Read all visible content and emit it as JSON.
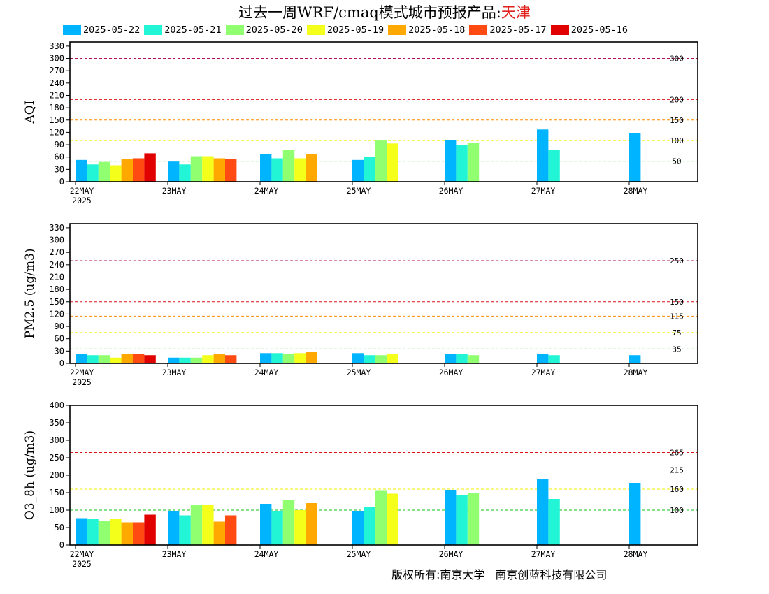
{
  "title": {
    "main": "过去一周WRF/cmaq模式城市预报产品:",
    "city": "天津"
  },
  "legend": [
    {
      "label": "2025-05-22",
      "color": "#00b4ff"
    },
    {
      "label": "2025-05-21",
      "color": "#21f5d5"
    },
    {
      "label": "2025-05-20",
      "color": "#90ff70"
    },
    {
      "label": "2025-05-19",
      "color": "#f4ff1a"
    },
    {
      "label": "2025-05-18",
      "color": "#ffa800"
    },
    {
      "label": "2025-05-17",
      "color": "#ff4a12"
    },
    {
      "label": "2025-05-16",
      "color": "#e00000"
    }
  ],
  "footer": {
    "left": "版权所有:南京大学",
    "right": "南京创蓝科技有限公司"
  },
  "chart_data": [
    {
      "type": "bar",
      "ylabel": "AQI",
      "ylim": [
        0,
        340
      ],
      "yticks": [
        0,
        30,
        60,
        90,
        120,
        150,
        180,
        210,
        240,
        270,
        300,
        330
      ],
      "categories": [
        "22MAY",
        "23MAY",
        "24MAY",
        "25MAY",
        "26MAY",
        "27MAY",
        "28MAY"
      ],
      "year_label": "2025",
      "thresholds": [
        {
          "value": 300,
          "label": "300",
          "color": "#b0105a"
        },
        {
          "value": 200,
          "label": "200",
          "color": "#e0101a"
        },
        {
          "value": 150,
          "label": "150",
          "color": "#ff8c00"
        },
        {
          "value": 100,
          "label": "100",
          "color": "#f0f000"
        },
        {
          "value": 50,
          "label": "50",
          "color": "#10c010"
        }
      ],
      "series": [
        {
          "name": "2025-05-22",
          "values": [
            53,
            49,
            68,
            53,
            101,
            127,
            119
          ]
        },
        {
          "name": "2025-05-21",
          "values": [
            42,
            42,
            57,
            60,
            89,
            78,
            null
          ]
        },
        {
          "name": "2025-05-20",
          "values": [
            48,
            62,
            78,
            100,
            95,
            null,
            null
          ]
        },
        {
          "name": "2025-05-19",
          "values": [
            40,
            62,
            57,
            93,
            null,
            null,
            null
          ]
        },
        {
          "name": "2025-05-18",
          "values": [
            55,
            57,
            68,
            null,
            null,
            null,
            null
          ]
        },
        {
          "name": "2025-05-17",
          "values": [
            57,
            55,
            null,
            null,
            null,
            null,
            null
          ]
        },
        {
          "name": "2025-05-16",
          "values": [
            69,
            null,
            null,
            null,
            null,
            null,
            null
          ]
        }
      ]
    },
    {
      "type": "bar",
      "ylabel": "PM2.5 (ug/m3)",
      "ylim": [
        0,
        340
      ],
      "yticks": [
        0,
        30,
        60,
        90,
        120,
        150,
        180,
        210,
        240,
        270,
        300,
        330
      ],
      "categories": [
        "22MAY",
        "23MAY",
        "24MAY",
        "25MAY",
        "26MAY",
        "27MAY",
        "28MAY"
      ],
      "year_label": "2025",
      "thresholds": [
        {
          "value": 250,
          "label": "250",
          "color": "#b0105a"
        },
        {
          "value": 150,
          "label": "150",
          "color": "#e0101a"
        },
        {
          "value": 115,
          "label": "115",
          "color": "#ff8c00"
        },
        {
          "value": 75,
          "label": "75",
          "color": "#f0f000"
        },
        {
          "value": 35,
          "label": "35",
          "color": "#10c010"
        }
      ],
      "series": [
        {
          "name": "2025-05-22",
          "values": [
            23,
            14,
            25,
            25,
            23,
            23,
            20
          ]
        },
        {
          "name": "2025-05-21",
          "values": [
            20,
            14,
            25,
            20,
            23,
            20,
            null
          ]
        },
        {
          "name": "2025-05-20",
          "values": [
            20,
            14,
            23,
            20,
            20,
            null,
            null
          ]
        },
        {
          "name": "2025-05-19",
          "values": [
            14,
            20,
            25,
            23,
            null,
            null,
            null
          ]
        },
        {
          "name": "2025-05-18",
          "values": [
            23,
            23,
            28,
            null,
            null,
            null,
            null
          ]
        },
        {
          "name": "2025-05-17",
          "values": [
            23,
            20,
            null,
            null,
            null,
            null,
            null
          ]
        },
        {
          "name": "2025-05-16",
          "values": [
            20,
            null,
            null,
            null,
            null,
            null,
            null
          ]
        }
      ]
    },
    {
      "type": "bar",
      "ylabel": "O3_8h (ug/m3)",
      "ylim": [
        0,
        400
      ],
      "yticks": [
        0,
        50,
        100,
        150,
        200,
        250,
        300,
        350,
        400
      ],
      "categories": [
        "22MAY",
        "23MAY",
        "24MAY",
        "25MAY",
        "26MAY",
        "27MAY",
        "28MAY"
      ],
      "year_label": "2025",
      "thresholds": [
        {
          "value": 265,
          "label": "265",
          "color": "#e0101a"
        },
        {
          "value": 215,
          "label": "215",
          "color": "#ff8c00"
        },
        {
          "value": 160,
          "label": "160",
          "color": "#f0f000"
        },
        {
          "value": 100,
          "label": "100",
          "color": "#10c010"
        }
      ],
      "series": [
        {
          "name": "2025-05-22",
          "values": [
            77,
            98,
            118,
            98,
            158,
            188,
            178
          ]
        },
        {
          "name": "2025-05-21",
          "values": [
            75,
            85,
            98,
            110,
            143,
            132,
            null
          ]
        },
        {
          "name": "2025-05-20",
          "values": [
            68,
            115,
            130,
            157,
            150,
            null,
            null
          ]
        },
        {
          "name": "2025-05-19",
          "values": [
            75,
            115,
            100,
            147,
            null,
            null,
            null
          ]
        },
        {
          "name": "2025-05-18",
          "values": [
            65,
            67,
            120,
            null,
            null,
            null,
            null
          ]
        },
        {
          "name": "2025-05-17",
          "values": [
            65,
            85,
            null,
            null,
            null,
            null,
            null
          ]
        },
        {
          "name": "2025-05-16",
          "values": [
            87,
            null,
            null,
            null,
            null,
            null,
            null
          ]
        }
      ]
    }
  ]
}
